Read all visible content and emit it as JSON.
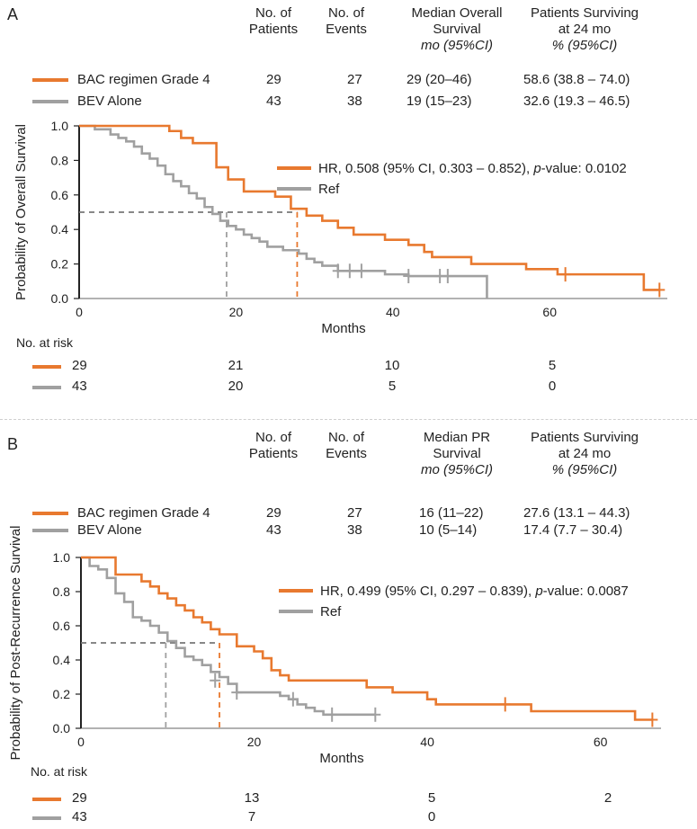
{
  "colors": {
    "bac": "#e8792f",
    "bev": "#a0a0a0",
    "axis": "#222222",
    "refline": "#777777"
  },
  "headers": {
    "patients": [
      "No. of",
      "Patients"
    ],
    "events": [
      "No. of",
      "Events"
    ],
    "surv24": [
      "Patients Surviving",
      "at 24 mo",
      "% (95%CI)"
    ]
  },
  "axis_label_x": "Months",
  "risk_label": "No. at risk",
  "chart_data": [
    {
      "panel": "A",
      "type": "line",
      "step": true,
      "median_header": [
        "Median Overall",
        "Survival",
        "mo (95%CI)"
      ],
      "ylabel": "Probability of Overall Survival",
      "xlabel": "Months",
      "xlim": [
        0,
        75
      ],
      "ylim": [
        0,
        1
      ],
      "xticks": [
        "0",
        "20",
        "40",
        "60"
      ],
      "yticks": [
        "0.0",
        "0.2",
        "0.4",
        "0.6",
        "0.8",
        "1.0"
      ],
      "hr_text_pre": "HR, 0.508 (95% CI, 0.303 – 0.852), ",
      "hr_italic": "p",
      "hr_text_post": "-value: 0.0102",
      "ref_text": "Ref",
      "median_line_y": 0.5,
      "groups": [
        {
          "name": "BAC regimen Grade 4",
          "patients": "29",
          "events": "27",
          "median": "29 (20–46)",
          "surv24": "58.6 (38.8 – 74.0)",
          "color": "#e8792f",
          "median_x": 27.8
        },
        {
          "name": "BEV Alone",
          "patients": "43",
          "events": "38",
          "median": "19 (15–23)",
          "surv24": "32.6 (19.3 – 46.5)",
          "color": "#a0a0a0",
          "median_x": 18.8
        }
      ],
      "series": [
        {
          "name": "BAC regimen Grade 4",
          "color": "#e8792f",
          "x": [
            0,
            11.5,
            13,
            14.5,
            17.5,
            19,
            21,
            25,
            27,
            28,
            29,
            31,
            33,
            35,
            39,
            42,
            44,
            45,
            49,
            50,
            52,
            57,
            61,
            62,
            72,
            74
          ],
          "y": [
            1.0,
            0.97,
            0.93,
            0.9,
            0.76,
            0.69,
            0.62,
            0.59,
            0.52,
            0.52,
            0.48,
            0.45,
            0.41,
            0.37,
            0.34,
            0.31,
            0.27,
            0.24,
            0.24,
            0.2,
            0.2,
            0.17,
            0.14,
            0.14,
            0.05,
            0.05
          ],
          "censor_x": [
            62,
            74
          ],
          "censor_y": [
            0.14,
            0.05
          ]
        },
        {
          "name": "BEV Alone",
          "color": "#a0a0a0",
          "x": [
            0,
            2,
            4,
            5,
            6,
            7,
            8,
            9,
            10,
            11,
            12,
            13,
            14,
            15,
            16,
            17,
            18,
            19,
            20,
            21,
            22,
            23,
            24,
            26,
            28,
            29,
            30,
            31,
            33,
            38,
            39,
            42,
            47,
            51,
            52
          ],
          "y": [
            1.0,
            0.98,
            0.95,
            0.93,
            0.91,
            0.88,
            0.84,
            0.81,
            0.77,
            0.72,
            0.68,
            0.65,
            0.61,
            0.58,
            0.53,
            0.49,
            0.45,
            0.42,
            0.4,
            0.37,
            0.35,
            0.33,
            0.3,
            0.28,
            0.26,
            0.23,
            0.21,
            0.19,
            0.16,
            0.16,
            0.14,
            0.13,
            0.13,
            0.13,
            0.0
          ],
          "censor_x": [
            33,
            34.5,
            36,
            42,
            46,
            47
          ],
          "censor_y": [
            0.16,
            0.16,
            0.16,
            0.13,
            0.13,
            0.13
          ]
        }
      ],
      "at_risk": {
        "times": [
          0,
          20,
          40,
          60
        ],
        "rows": [
          {
            "color": "#e8792f",
            "values": [
              "29",
              "21",
              "10",
              "5"
            ]
          },
          {
            "color": "#a0a0a0",
            "values": [
              "43",
              "20",
              "5",
              "0"
            ]
          }
        ]
      }
    },
    {
      "panel": "B",
      "type": "line",
      "step": true,
      "median_header": [
        "Median PR",
        "Survival",
        "mo (95%CI)"
      ],
      "ylabel": "Probability of Post-Recurrence Survival",
      "xlabel": "Months",
      "xlim": [
        0,
        67
      ],
      "ylim": [
        0,
        1
      ],
      "xticks": [
        "0",
        "20",
        "40",
        "60"
      ],
      "yticks": [
        "0.0",
        "0.2",
        "0.4",
        "0.6",
        "0.8",
        "1.0"
      ],
      "hr_text_pre": "HR, 0.499 (95% CI, 0.297 – 0.839), ",
      "hr_italic": "p",
      "hr_text_post": "-value: 0.0087",
      "ref_text": "Ref",
      "median_line_y": 0.5,
      "groups": [
        {
          "name": "BAC regimen Grade 4",
          "patients": "29",
          "events": "27",
          "median": "16 (11–22)",
          "surv24": "27.6 (13.1 – 44.3)",
          "color": "#e8792f",
          "median_x": 16
        },
        {
          "name": "BEV Alone",
          "patients": "43",
          "events": "38",
          "median": "10 (5–14)",
          "surv24": "17.4 (7.7 – 30.4)",
          "color": "#a0a0a0",
          "median_x": 9.8
        }
      ],
      "series": [
        {
          "name": "BAC regimen Grade 4",
          "color": "#e8792f",
          "x": [
            0,
            4,
            5,
            7,
            8,
            9,
            10,
            11,
            12,
            13,
            14,
            15,
            16,
            18,
            20,
            21,
            22,
            23,
            24,
            29,
            33,
            36,
            40,
            41,
            44,
            48,
            49,
            52,
            54,
            60,
            64,
            65,
            66
          ],
          "y": [
            1.0,
            0.9,
            0.9,
            0.86,
            0.83,
            0.79,
            0.76,
            0.72,
            0.69,
            0.65,
            0.62,
            0.58,
            0.55,
            0.48,
            0.45,
            0.41,
            0.34,
            0.31,
            0.28,
            0.28,
            0.24,
            0.21,
            0.17,
            0.14,
            0.14,
            0.14,
            0.14,
            0.1,
            0.1,
            0.1,
            0.05,
            0.05,
            0.05
          ],
          "censor_x": [
            49,
            66
          ],
          "censor_y": [
            0.14,
            0.05
          ]
        },
        {
          "name": "BEV Alone",
          "color": "#a0a0a0",
          "x": [
            0,
            1,
            2,
            3,
            4,
            5,
            6,
            7,
            8,
            9,
            10,
            11,
            12,
            13,
            14,
            15,
            16,
            17,
            18,
            22,
            23,
            24,
            25,
            26,
            27,
            28,
            29,
            34
          ],
          "y": [
            1.0,
            0.95,
            0.93,
            0.88,
            0.79,
            0.74,
            0.65,
            0.63,
            0.6,
            0.56,
            0.51,
            0.47,
            0.42,
            0.4,
            0.37,
            0.33,
            0.3,
            0.26,
            0.21,
            0.21,
            0.19,
            0.17,
            0.14,
            0.12,
            0.1,
            0.08,
            0.08,
            0.08
          ],
          "censor_x": [
            15.5,
            18,
            24.5,
            29,
            34
          ],
          "censor_y": [
            0.28,
            0.21,
            0.17,
            0.08,
            0.08
          ]
        }
      ],
      "at_risk": {
        "times": [
          0,
          20,
          40,
          60
        ],
        "rows": [
          {
            "color": "#e8792f",
            "values": [
              "29",
              "13",
              "5",
              "2"
            ]
          },
          {
            "color": "#a0a0a0",
            "values": [
              "43",
              "7",
              "0",
              ""
            ]
          }
        ]
      }
    }
  ]
}
